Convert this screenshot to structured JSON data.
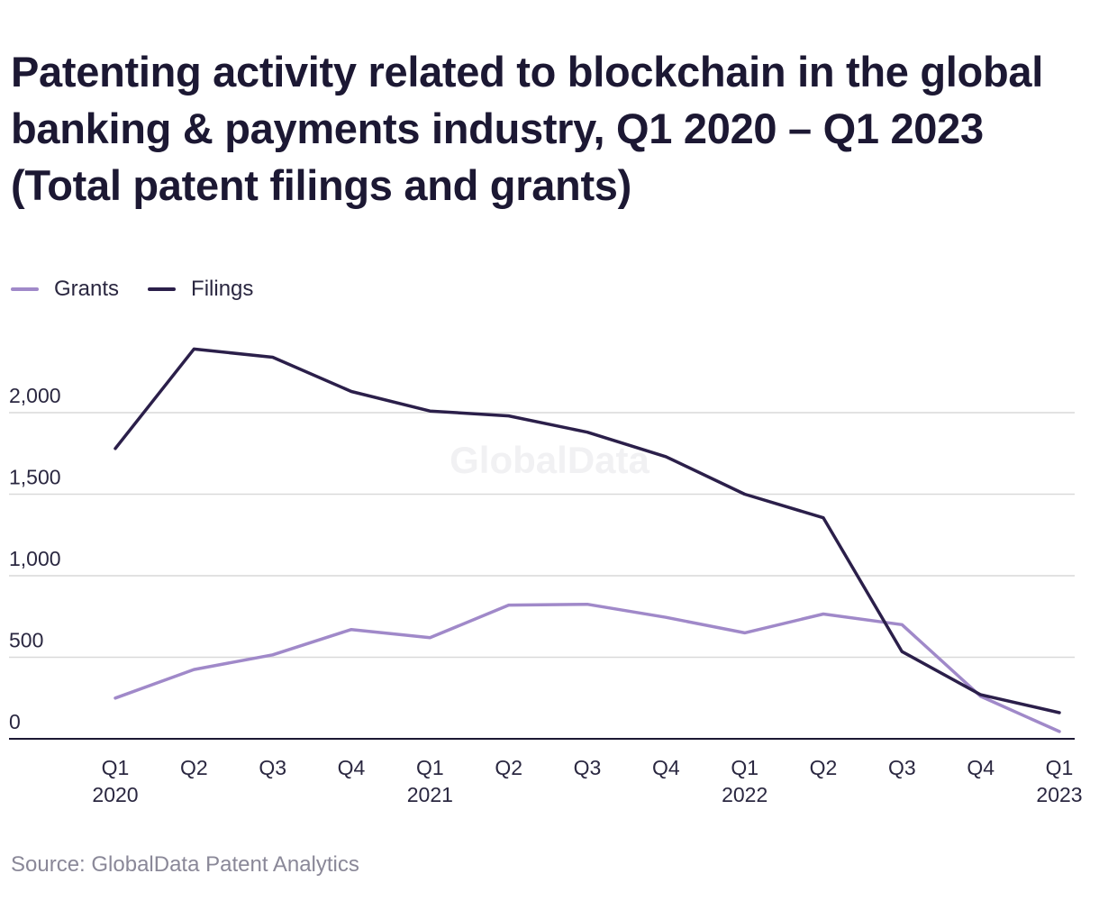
{
  "title_lines": [
    "Patenting activity related to blockchain in the global",
    "banking & payments industry, Q1 2020 – Q1 2023",
    "(Total patent filings and grants)"
  ],
  "watermark": "GlobalData",
  "source": "Source: GlobalData Patent Analytics",
  "colors": {
    "grants": "#a089c9",
    "filings": "#2b1f4a",
    "grid": "#d9d9d9",
    "axis": "#1c1833"
  },
  "chart_data": {
    "type": "line",
    "title": "Patenting activity related to blockchain in the global banking & payments industry, Q1 2020 – Q1 2023 (Total patent filings and grants)",
    "categories": [
      [
        "Q1",
        "2020"
      ],
      [
        "Q2",
        ""
      ],
      [
        "Q3",
        ""
      ],
      [
        "Q4",
        ""
      ],
      [
        "Q1",
        "2021"
      ],
      [
        "Q2",
        ""
      ],
      [
        "Q3",
        ""
      ],
      [
        "Q4",
        ""
      ],
      [
        "Q1",
        "2022"
      ],
      [
        "Q2",
        ""
      ],
      [
        "Q3",
        ""
      ],
      [
        "Q4",
        ""
      ],
      [
        "Q1",
        "2023"
      ]
    ],
    "series": [
      {
        "name": "Grants",
        "values": [
          250,
          425,
          515,
          670,
          620,
          820,
          825,
          745,
          650,
          765,
          700,
          260,
          45
        ]
      },
      {
        "name": "Filings",
        "values": [
          1780,
          2390,
          2340,
          2130,
          2010,
          1980,
          1880,
          1730,
          1500,
          1355,
          535,
          270,
          160
        ]
      }
    ],
    "yticks": [
      0,
      500,
      1000,
      1500,
      2000
    ],
    "ytick_labels": [
      "0",
      "500",
      "1,000",
      "1,500",
      "2,000"
    ],
    "ylim": [
      0,
      2400
    ],
    "xlabel": "",
    "ylabel": "",
    "grid": true,
    "legend": "top-left"
  }
}
